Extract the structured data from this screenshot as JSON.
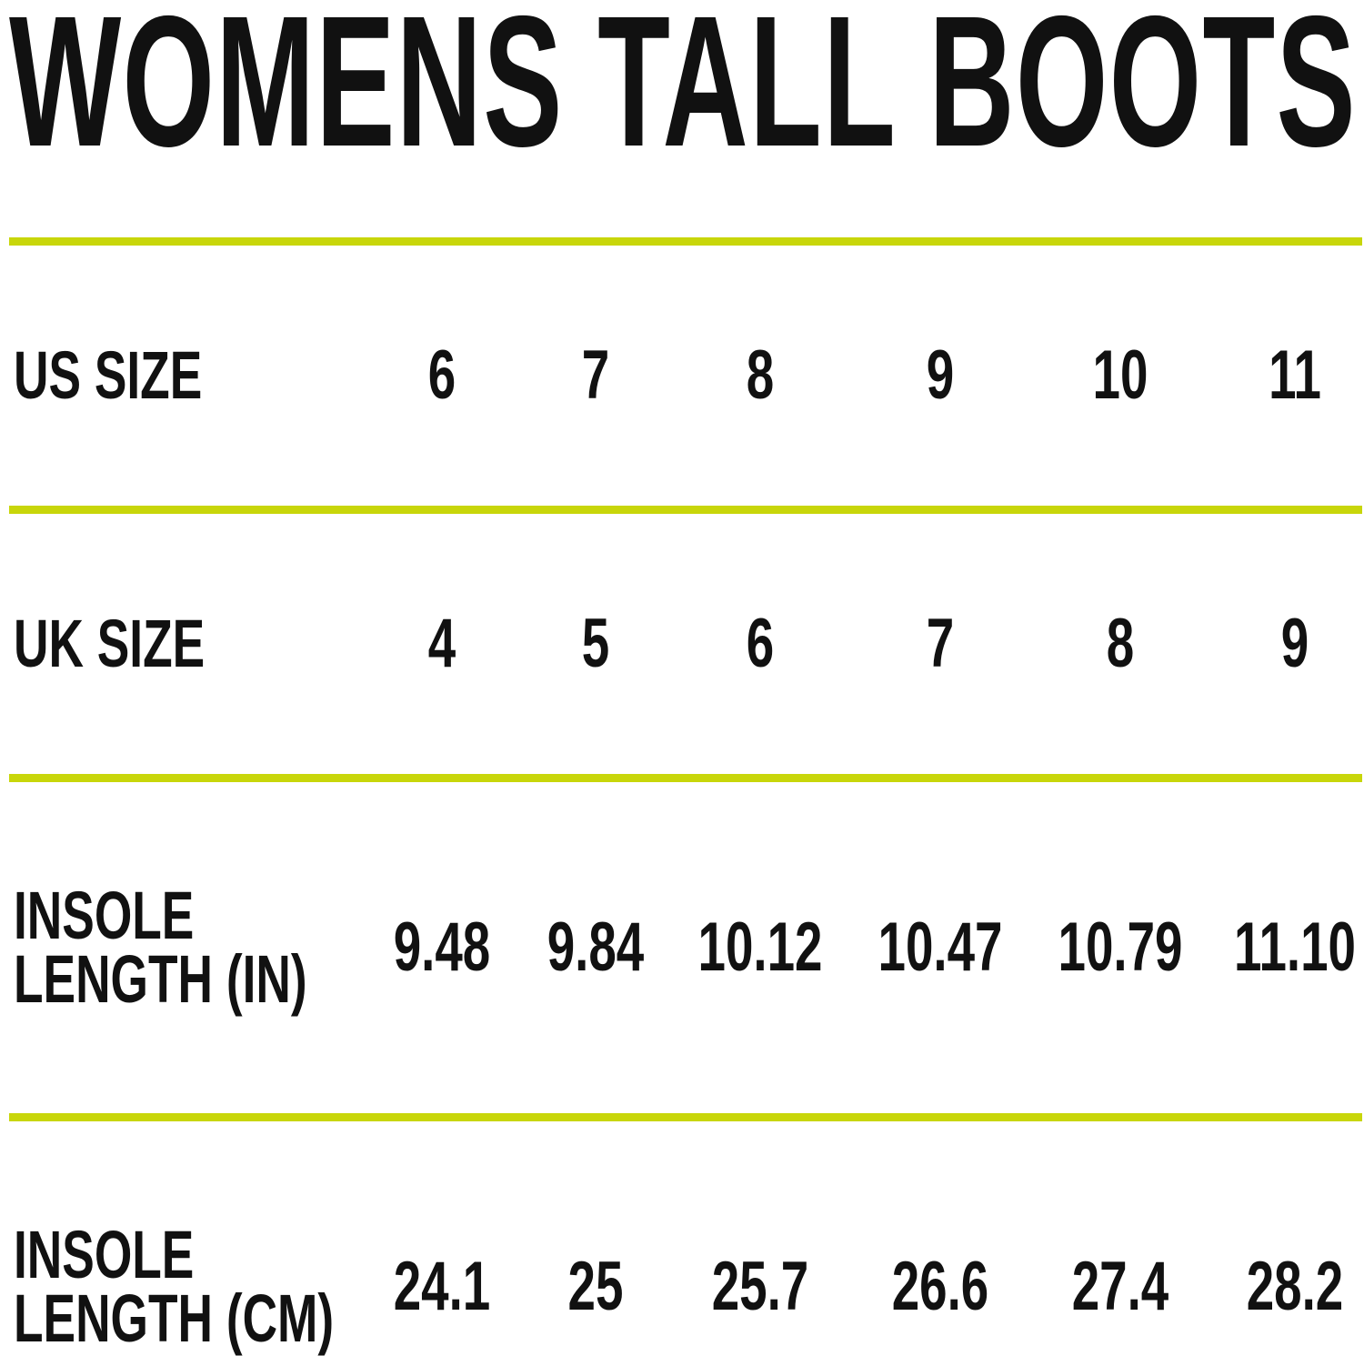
{
  "title": "WOMENS TALL BOOTS",
  "accent_color": "#c8d60a",
  "rows": [
    {
      "label_lines": [
        "US SIZE"
      ],
      "values": [
        "6",
        "7",
        "8",
        "9",
        "10",
        "11"
      ]
    },
    {
      "label_lines": [
        "UK SIZE"
      ],
      "values": [
        "4",
        "5",
        "6",
        "7",
        "8",
        "9"
      ]
    },
    {
      "label_lines": [
        "INSOLE",
        "LENGTH (IN)"
      ],
      "values": [
        "9.48",
        "9.84",
        "10.12",
        "10.47",
        "10.79",
        "11.10"
      ]
    },
    {
      "label_lines": [
        "INSOLE",
        "LENGTH (CM)"
      ],
      "values": [
        "24.1",
        "25",
        "25.7",
        "26.6",
        "27.4",
        "28.2"
      ]
    }
  ]
}
